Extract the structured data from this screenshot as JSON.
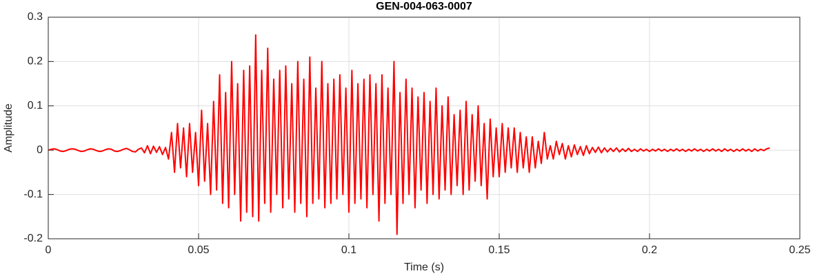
{
  "chart_data": {
    "type": "line",
    "title": "GEN-004-063-0007",
    "x_label": "Time (s)",
    "y_label": "Amplitude",
    "color": "#ff0000",
    "grid": true,
    "xlim": [
      0,
      0.25
    ],
    "xticks": [
      0,
      0.05,
      0.1,
      0.15,
      0.2,
      0.25
    ],
    "ylim": [
      -0.2,
      0.3
    ],
    "yticks": [
      0.3,
      0.2,
      0.1,
      0,
      -0.1,
      -0.2
    ],
    "x": [
      0,
      0.001,
      0.002,
      0.003,
      0.004,
      0.005,
      0.006,
      0.007,
      0.008,
      0.009,
      0.01,
      0.011,
      0.012,
      0.013,
      0.014,
      0.015,
      0.016,
      0.017,
      0.018,
      0.019,
      0.02,
      0.021,
      0.022,
      0.023,
      0.024,
      0.025,
      0.026,
      0.027,
      0.028,
      0.029,
      0.03,
      0.031,
      0.032,
      0.033,
      0.034,
      0.035,
      0.036,
      0.037,
      0.038,
      0.039,
      0.04,
      0.041,
      0.042,
      0.043,
      0.044,
      0.045,
      0.046,
      0.047,
      0.048,
      0.049,
      0.05,
      0.051,
      0.052,
      0.053,
      0.054,
      0.055,
      0.056,
      0.057,
      0.058,
      0.059,
      0.06,
      0.061,
      0.062,
      0.063,
      0.064,
      0.065,
      0.066,
      0.067,
      0.068,
      0.069,
      0.07,
      0.071,
      0.072,
      0.073,
      0.074,
      0.075,
      0.076,
      0.077,
      0.078,
      0.079,
      0.08,
      0.081,
      0.082,
      0.083,
      0.084,
      0.085,
      0.086,
      0.087,
      0.088,
      0.089,
      0.09,
      0.091,
      0.092,
      0.093,
      0.094,
      0.095,
      0.096,
      0.097,
      0.098,
      0.099,
      0.1,
      0.101,
      0.102,
      0.103,
      0.104,
      0.105,
      0.106,
      0.107,
      0.108,
      0.109,
      0.11,
      0.111,
      0.112,
      0.113,
      0.114,
      0.115,
      0.116,
      0.117,
      0.118,
      0.119,
      0.12,
      0.121,
      0.122,
      0.123,
      0.124,
      0.125,
      0.126,
      0.127,
      0.128,
      0.129,
      0.13,
      0.131,
      0.132,
      0.133,
      0.134,
      0.135,
      0.136,
      0.137,
      0.138,
      0.139,
      0.14,
      0.141,
      0.142,
      0.143,
      0.144,
      0.145,
      0.146,
      0.147,
      0.148,
      0.149,
      0.15,
      0.151,
      0.152,
      0.153,
      0.154,
      0.155,
      0.156,
      0.157,
      0.158,
      0.159,
      0.16,
      0.161,
      0.162,
      0.163,
      0.164,
      0.165,
      0.166,
      0.167,
      0.168,
      0.169,
      0.17,
      0.171,
      0.172,
      0.173,
      0.174,
      0.175,
      0.176,
      0.177,
      0.178,
      0.179,
      0.18,
      0.181,
      0.182,
      0.183,
      0.184,
      0.185,
      0.186,
      0.187,
      0.188,
      0.189,
      0.19,
      0.191,
      0.192,
      0.193,
      0.194,
      0.195,
      0.196,
      0.197,
      0.198,
      0.199,
      0.2,
      0.201,
      0.202,
      0.203,
      0.204,
      0.205,
      0.206,
      0.207,
      0.208,
      0.209,
      0.21,
      0.211,
      0.212,
      0.213,
      0.214,
      0.215,
      0.216,
      0.217,
      0.218,
      0.219,
      0.22,
      0.221,
      0.222,
      0.223,
      0.224,
      0.225,
      0.226,
      0.227,
      0.228,
      0.229,
      0.23,
      0.231,
      0.232,
      0.233,
      0.234,
      0.235,
      0.236,
      0.237,
      0.238,
      0.239,
      0.24
    ],
    "values": [
      0,
      0.002,
      0.003,
      0.001,
      -0.002,
      -0.003,
      -0.001,
      0.002,
      0.003,
      0.002,
      -0.001,
      -0.003,
      -0.002,
      0.001,
      0.003,
      0.002,
      -0.001,
      -0.003,
      -0.002,
      0.001,
      0.003,
      0.002,
      -0.002,
      -0.003,
      -0.001,
      0.002,
      0.004,
      0.001,
      -0.003,
      -0.004,
      0.002,
      0.005,
      -0.006,
      0.01,
      -0.008,
      0.009,
      -0.005,
      0.008,
      -0.01,
      0.006,
      -0.02,
      0.04,
      -0.05,
      0.06,
      -0.04,
      0.05,
      -0.06,
      0.06,
      -0.05,
      0.04,
      -0.08,
      0.09,
      -0.07,
      0.06,
      -0.1,
      0.11,
      -0.09,
      0.17,
      -0.12,
      0.13,
      -0.13,
      0.2,
      -0.1,
      0.15,
      -0.16,
      0.18,
      -0.14,
      0.19,
      -0.15,
      0.26,
      -0.16,
      0.18,
      -0.12,
      0.23,
      -0.14,
      0.16,
      -0.1,
      0.18,
      -0.13,
      0.19,
      -0.11,
      0.15,
      -0.14,
      0.2,
      -0.12,
      0.16,
      -0.15,
      0.21,
      -0.12,
      0.14,
      -0.11,
      0.2,
      -0.13,
      0.15,
      -0.12,
      0.16,
      -0.11,
      0.17,
      -0.1,
      0.14,
      -0.14,
      0.18,
      -0.12,
      0.15,
      -0.11,
      0.16,
      -0.13,
      0.17,
      -0.1,
      0.15,
      -0.16,
      0.17,
      -0.12,
      0.14,
      -0.1,
      0.2,
      -0.19,
      0.13,
      -0.12,
      0.16,
      -0.1,
      0.14,
      -0.13,
      0.12,
      -0.09,
      0.13,
      -0.12,
      0.11,
      -0.1,
      0.14,
      -0.11,
      0.1,
      -0.09,
      0.12,
      -0.1,
      0.08,
      -0.08,
      0.09,
      -0.1,
      0.11,
      -0.09,
      0.08,
      -0.07,
      0.1,
      -0.08,
      0.06,
      -0.11,
      0.07,
      -0.06,
      0.05,
      -0.06,
      0.06,
      -0.05,
      0.05,
      -0.04,
      0.05,
      -0.05,
      0.04,
      -0.04,
      0.03,
      -0.05,
      0.03,
      -0.04,
      0.02,
      -0.03,
      0.04,
      -0.02,
      0.01,
      -0.02,
      0.02,
      -0.01,
      0.015,
      -0.02,
      0.01,
      -0.015,
      0.012,
      -0.01,
      0.008,
      -0.012,
      0.01,
      -0.008,
      0.006,
      -0.005,
      0.007,
      -0.006,
      0.005,
      -0.004,
      0.004,
      -0.003,
      0.005,
      -0.004,
      0.003,
      -0.003,
      0.004,
      -0.003,
      0.002,
      -0.003,
      0.003,
      -0.002,
      0.002,
      -0.003,
      0.002,
      -0.002,
      0.003,
      -0.002,
      0.002,
      -0.003,
      0.002,
      -0.002,
      0.003,
      -0.002,
      0.002,
      -0.003,
      0.002,
      -0.002,
      0.003,
      -0.002,
      0.002,
      -0.003,
      0.002,
      -0.002,
      0.003,
      -0.002,
      0.002,
      -0.003,
      0.003,
      -0.002,
      0.002,
      -0.003,
      0.002,
      -0.002,
      0.003,
      -0.002,
      0.002,
      -0.003,
      0.003,
      -0.002,
      0.002,
      -0.001,
      0.003,
      0.005
    ]
  }
}
